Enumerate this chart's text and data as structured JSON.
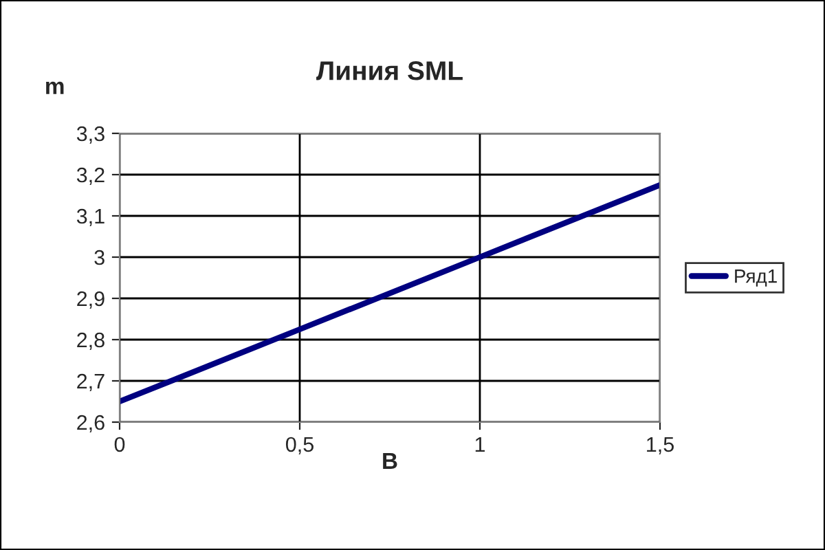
{
  "chart_data": {
    "type": "line",
    "title": "Линия SML",
    "xlabel": "B",
    "ylabel": "m",
    "x": [
      0,
      0.5,
      1,
      1.5
    ],
    "series": [
      {
        "name": "Ряд1",
        "color": "#000080",
        "values": [
          2.65,
          2.825,
          3.0,
          3.175
        ]
      }
    ],
    "xlim": [
      0,
      1.5
    ],
    "xticks": [
      0,
      {
        "value": 0.5,
        "label": "0,5"
      },
      1,
      {
        "value": 1.5,
        "label": "1,5"
      }
    ],
    "ylim": [
      2.6,
      3.3
    ],
    "yticks": [
      {
        "value": 2.6,
        "label": "2,6"
      },
      {
        "value": 2.7,
        "label": "2,7"
      },
      {
        "value": 2.8,
        "label": "2,8"
      },
      {
        "value": 2.9,
        "label": "2,9"
      },
      3,
      {
        "value": 3.1,
        "label": "3,1"
      },
      {
        "value": 3.2,
        "label": "3,2"
      },
      {
        "value": 3.3,
        "label": "3,3"
      }
    ],
    "grid": true,
    "legend": "right",
    "marker": "none",
    "line_style": "solid"
  }
}
